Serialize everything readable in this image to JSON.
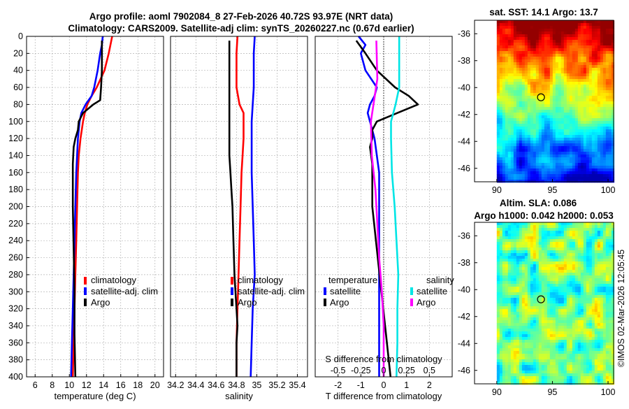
{
  "title": {
    "line1": "Argo profile: aoml 7902084_8 27-Feb-2026 40.72S 93.97E (NRT data)",
    "line2": "Climatology: CARS2009. Satellite-adj clim: synTS_20260227.nc (0.67d earlier)"
  },
  "colors": {
    "climatology": "#ff0000",
    "satellite": "#0000ff",
    "argo": "#000000",
    "sat_salinity": "#00e5e5",
    "argo_salinity": "#ff00ff"
  },
  "depth_axis": {
    "ylim": [
      0,
      400
    ],
    "ticks": [
      "0",
      "20",
      "40",
      "60",
      "80",
      "100",
      "120",
      "140",
      "160",
      "180",
      "200",
      "220",
      "240",
      "260",
      "280",
      "300",
      "320",
      "340",
      "360",
      "380",
      "400"
    ]
  },
  "chart_data": [
    {
      "type": "line",
      "id": "temperature",
      "xlabel": "temperature (deg C)",
      "xlim": [
        5,
        21
      ],
      "xticks": [
        6,
        8,
        10,
        12,
        14,
        16,
        18,
        20
      ],
      "xtick_labels": [
        "6",
        "8",
        "10",
        "12",
        "14",
        "16",
        "18",
        "20"
      ],
      "legend": [
        "climatology",
        "satellite-adj. clim",
        "Argo"
      ],
      "series": [
        {
          "name": "climatology",
          "color": "#ff0000",
          "depth": [
            0,
            20,
            40,
            60,
            70,
            80,
            90,
            100,
            120,
            140,
            160,
            200,
            240,
            280,
            320,
            360,
            400
          ],
          "values": [
            15.0,
            14.6,
            14.1,
            13.2,
            12.6,
            12.1,
            11.8,
            11.6,
            11.3,
            11.1,
            11.0,
            10.9,
            10.8,
            10.7,
            10.6,
            10.5,
            10.4
          ]
        },
        {
          "name": "satellite-adj. clim",
          "color": "#0000ff",
          "depth": [
            0,
            10,
            20,
            40,
            60,
            70,
            80,
            90,
            100,
            120,
            140,
            160,
            200,
            240,
            280,
            320,
            360,
            400
          ],
          "values": [
            13.9,
            13.8,
            13.6,
            13.3,
            12.9,
            12.6,
            11.9,
            11.4,
            11.2,
            11.0,
            10.9,
            10.8,
            10.7,
            10.6,
            10.5,
            10.4,
            10.3,
            10.2
          ]
        },
        {
          "name": "Argo",
          "color": "#000000",
          "depth": [
            5,
            20,
            40,
            60,
            75,
            80,
            90,
            100,
            110,
            120,
            130,
            150,
            200,
            250,
            300,
            350,
            400
          ],
          "values": [
            13.8,
            13.8,
            13.8,
            13.7,
            13.6,
            12.8,
            11.6,
            11.1,
            11.0,
            10.7,
            10.5,
            10.4,
            10.4,
            10.5,
            10.6,
            10.6,
            10.7
          ]
        }
      ]
    },
    {
      "type": "line",
      "id": "salinity",
      "xlabel": "salinity",
      "xlim": [
        34.15,
        35.5
      ],
      "xticks": [
        34.2,
        34.4,
        34.6,
        34.8,
        35.0,
        35.2,
        35.4
      ],
      "xtick_labels": [
        "34.2",
        "34.4",
        "34.6",
        "34.8",
        "35",
        "35.2",
        "35.4"
      ],
      "legend": [
        "climatology",
        "satellite-adj. clim",
        "Argo"
      ],
      "series": [
        {
          "name": "climatology",
          "color": "#ff0000",
          "depth": [
            0,
            20,
            40,
            60,
            80,
            90,
            100,
            120,
            140,
            160,
            200,
            240,
            280,
            320,
            360,
            400
          ],
          "values": [
            34.81,
            34.8,
            34.8,
            34.8,
            34.83,
            34.87,
            34.87,
            34.87,
            34.86,
            34.85,
            34.84,
            34.83,
            34.82,
            34.81,
            34.8,
            34.8
          ]
        },
        {
          "name": "satellite-adj. clim",
          "color": "#0000ff",
          "depth": [
            0,
            20,
            40,
            60,
            80,
            100,
            120,
            160,
            200,
            240,
            280,
            320,
            360,
            400
          ],
          "values": [
            34.98,
            34.97,
            34.97,
            34.97,
            34.96,
            34.95,
            34.95,
            34.95,
            34.96,
            34.97,
            34.98,
            34.96,
            34.95,
            34.94
          ]
        },
        {
          "name": "Argo",
          "color": "#000000",
          "depth": [
            5,
            50,
            100,
            140,
            160,
            180,
            200,
            240,
            280,
            300,
            320,
            340,
            360,
            380,
            400
          ],
          "values": [
            34.73,
            34.73,
            34.73,
            34.73,
            34.74,
            34.75,
            34.76,
            34.77,
            34.78,
            34.79,
            34.8,
            34.81,
            34.8,
            34.8,
            34.8
          ]
        }
      ]
    },
    {
      "type": "line",
      "id": "differences",
      "xlabel": "T difference from climatology",
      "xlabel_top": "S difference from climatology",
      "xlim": [
        -3,
        3
      ],
      "xticks": [
        -2,
        -1,
        0,
        1,
        2
      ],
      "xtick_labels": [
        "-2",
        "-1",
        "0",
        "1",
        "2"
      ],
      "sticks": [
        -0.5,
        -0.25,
        0,
        0.25,
        0.5
      ],
      "stick_labels": [
        "-0.5",
        "-0.25",
        "0",
        "0.25",
        "0.5"
      ],
      "slim": [
        -0.75,
        0.75
      ],
      "legend_titles": [
        "temperature",
        "salinity"
      ],
      "legend_t": [
        "satellite",
        "Argo"
      ],
      "legend_s": [
        "satellite",
        "Argo"
      ],
      "series": [
        {
          "name": "T satellite - climatology",
          "color": "#0000ff",
          "depth": [
            0,
            10,
            20,
            40,
            60,
            70,
            80,
            90,
            100,
            120,
            140,
            160,
            200,
            240,
            280,
            320,
            360,
            400
          ],
          "values": [
            -1.1,
            -0.8,
            -1.0,
            -0.8,
            -0.3,
            -0.4,
            -0.6,
            -0.7,
            -0.6,
            -0.4,
            -0.3,
            -0.2,
            -0.2,
            -0.2,
            -0.2,
            -0.2,
            -0.2,
            -0.2
          ]
        },
        {
          "name": "T Argo - climatology",
          "color": "#000000",
          "depth": [
            5,
            20,
            40,
            60,
            70,
            80,
            90,
            100,
            110,
            120,
            130,
            150,
            200,
            250,
            300,
            350,
            400
          ],
          "values": [
            -1.2,
            -0.8,
            -0.3,
            0.5,
            1.1,
            1.5,
            0.6,
            -0.3,
            -0.5,
            -0.5,
            -0.6,
            -0.5,
            -0.5,
            -0.3,
            -0.1,
            0.1,
            0.3
          ]
        },
        {
          "name": "S satellite - climatology",
          "color": "#00e5e5",
          "scale": "salinity",
          "depth": [
            0,
            20,
            40,
            60,
            80,
            100,
            120,
            160,
            200,
            240,
            280,
            320,
            360,
            400
          ],
          "values": [
            0.17,
            0.17,
            0.17,
            0.17,
            0.13,
            0.08,
            0.08,
            0.09,
            0.12,
            0.14,
            0.16,
            0.15,
            0.15,
            0.14
          ]
        },
        {
          "name": "S Argo - climatology",
          "color": "#ff00ff",
          "scale": "salinity",
          "depth": [
            5,
            50,
            100,
            140,
            180,
            220,
            260,
            300,
            340,
            380,
            400
          ],
          "values": [
            -0.08,
            -0.07,
            -0.14,
            -0.13,
            -0.09,
            -0.07,
            -0.05,
            -0.02,
            0.0,
            0.0,
            0.0
          ]
        }
      ]
    },
    {
      "type": "heatmap",
      "id": "sst_map",
      "title": "sat. SST: 14.1 Argo: 13.7",
      "xlim": [
        88,
        100.5
      ],
      "ylim": [
        -47,
        -35
      ],
      "xticks": [
        "90",
        "95",
        "100"
      ],
      "yticks": [
        "-36",
        "-38",
        "-40",
        "-42",
        "-44",
        "-46"
      ],
      "data_lon_start": 90,
      "marker": {
        "lon": 93.97,
        "lat": -40.72
      }
    },
    {
      "type": "heatmap",
      "id": "sla_map",
      "title": "Altim. SLA: 0.086",
      "subtitle": "Argo h1000: 0.042 h2000: 0.053",
      "xlim": [
        88,
        100.5
      ],
      "ylim": [
        -47,
        -35
      ],
      "xticks": [
        "90",
        "95",
        "100"
      ],
      "yticks": [
        "-36",
        "-38",
        "-40",
        "-42",
        "-44",
        "-46"
      ],
      "data_lon_start": 90,
      "marker": {
        "lon": 93.97,
        "lat": -40.72
      }
    }
  ],
  "side_label": "©IMOS 02-Mar-2026 12:05:45"
}
